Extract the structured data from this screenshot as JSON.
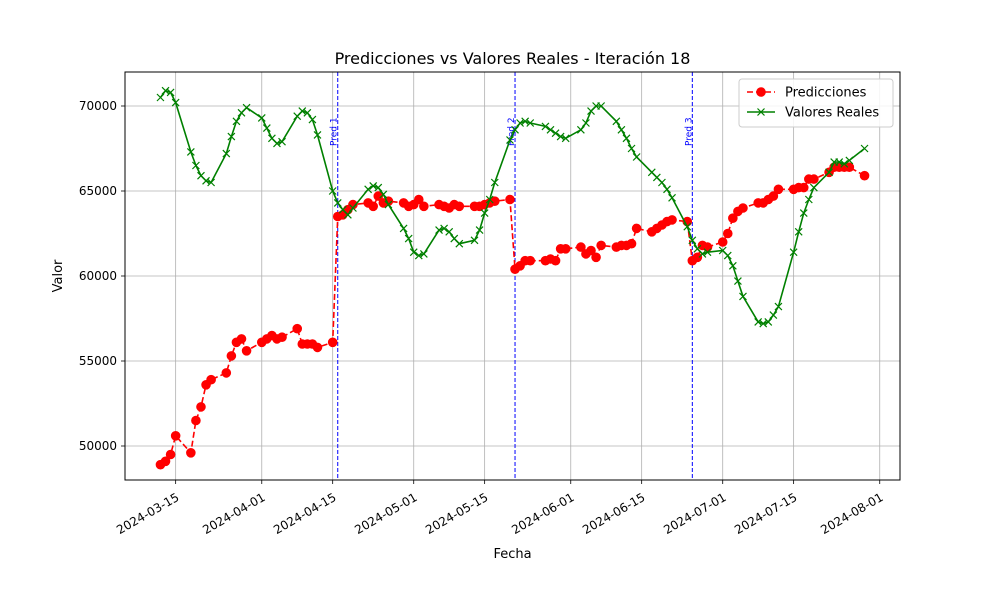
{
  "chart_data": {
    "type": "line",
    "title": "Predicciones vs Valores Reales - Iteración 18",
    "xlabel": "Fecha",
    "ylabel": "Valor",
    "x_axis": "date",
    "xlim": [
      "2024-03-05",
      "2024-08-05"
    ],
    "ylim": [
      48000,
      72000
    ],
    "grid": true,
    "legend": "top-right",
    "x_ticks": [
      "2024-03-15",
      "2024-04-01",
      "2024-04-15",
      "2024-05-01",
      "2024-05-15",
      "2024-06-01",
      "2024-06-15",
      "2024-07-01",
      "2024-07-15",
      "2024-08-01"
    ],
    "y_ticks": [
      50000,
      55000,
      60000,
      65000,
      70000
    ],
    "series": [
      {
        "name": "Predicciones",
        "color": "#ff0000",
        "line_style": "dashed",
        "marker": "circle",
        "points": [
          [
            "2024-03-12",
            48900
          ],
          [
            "2024-03-13",
            49100
          ],
          [
            "2024-03-14",
            49500
          ],
          [
            "2024-03-15",
            50600
          ],
          [
            "2024-03-18",
            49600
          ],
          [
            "2024-03-19",
            51500
          ],
          [
            "2024-03-20",
            52300
          ],
          [
            "2024-03-21",
            53600
          ],
          [
            "2024-03-22",
            53900
          ],
          [
            "2024-03-25",
            54300
          ],
          [
            "2024-03-26",
            55300
          ],
          [
            "2024-03-27",
            56100
          ],
          [
            "2024-03-28",
            56300
          ],
          [
            "2024-03-29",
            55600
          ],
          [
            "2024-04-01",
            56100
          ],
          [
            "2024-04-02",
            56300
          ],
          [
            "2024-04-03",
            56500
          ],
          [
            "2024-04-04",
            56300
          ],
          [
            "2024-04-05",
            56400
          ],
          [
            "2024-04-08",
            56900
          ],
          [
            "2024-04-09",
            56000
          ],
          [
            "2024-04-10",
            56000
          ],
          [
            "2024-04-11",
            56000
          ],
          [
            "2024-04-12",
            55800
          ],
          [
            "2024-04-15",
            56100
          ],
          [
            "2024-04-16",
            63500
          ],
          [
            "2024-04-17",
            63600
          ],
          [
            "2024-04-18",
            63900
          ],
          [
            "2024-04-19",
            64200
          ],
          [
            "2024-04-22",
            64300
          ],
          [
            "2024-04-23",
            64100
          ],
          [
            "2024-04-24",
            64700
          ],
          [
            "2024-04-25",
            64300
          ],
          [
            "2024-04-26",
            64400
          ],
          [
            "2024-04-29",
            64300
          ],
          [
            "2024-04-30",
            64100
          ],
          [
            "2024-05-01",
            64200
          ],
          [
            "2024-05-02",
            64500
          ],
          [
            "2024-05-03",
            64100
          ],
          [
            "2024-05-06",
            64200
          ],
          [
            "2024-05-07",
            64100
          ],
          [
            "2024-05-08",
            64000
          ],
          [
            "2024-05-09",
            64200
          ],
          [
            "2024-05-10",
            64100
          ],
          [
            "2024-05-13",
            64100
          ],
          [
            "2024-05-14",
            64100
          ],
          [
            "2024-05-15",
            64200
          ],
          [
            "2024-05-16",
            64300
          ],
          [
            "2024-05-17",
            64400
          ],
          [
            "2024-05-20",
            64500
          ],
          [
            "2024-05-21",
            60400
          ],
          [
            "2024-05-22",
            60600
          ],
          [
            "2024-05-23",
            60900
          ],
          [
            "2024-05-24",
            60900
          ],
          [
            "2024-05-27",
            60900
          ],
          [
            "2024-05-28",
            61000
          ],
          [
            "2024-05-29",
            60900
          ],
          [
            "2024-05-30",
            61600
          ],
          [
            "2024-05-31",
            61600
          ],
          [
            "2024-06-03",
            61700
          ],
          [
            "2024-06-04",
            61300
          ],
          [
            "2024-06-05",
            61500
          ],
          [
            "2024-06-06",
            61100
          ],
          [
            "2024-06-07",
            61800
          ],
          [
            "2024-06-10",
            61700
          ],
          [
            "2024-06-11",
            61800
          ],
          [
            "2024-06-12",
            61800
          ],
          [
            "2024-06-13",
            61900
          ],
          [
            "2024-06-14",
            62800
          ],
          [
            "2024-06-17",
            62600
          ],
          [
            "2024-06-18",
            62800
          ],
          [
            "2024-06-19",
            63000
          ],
          [
            "2024-06-20",
            63200
          ],
          [
            "2024-06-21",
            63300
          ],
          [
            "2024-06-24",
            63200
          ],
          [
            "2024-06-25",
            60900
          ],
          [
            "2024-06-26",
            61100
          ],
          [
            "2024-06-27",
            61800
          ],
          [
            "2024-06-28",
            61700
          ],
          [
            "2024-07-01",
            62000
          ],
          [
            "2024-07-02",
            62500
          ],
          [
            "2024-07-03",
            63400
          ],
          [
            "2024-07-04",
            63800
          ],
          [
            "2024-07-05",
            64000
          ],
          [
            "2024-07-08",
            64300
          ],
          [
            "2024-07-09",
            64300
          ],
          [
            "2024-07-10",
            64500
          ],
          [
            "2024-07-11",
            64700
          ],
          [
            "2024-07-12",
            65100
          ],
          [
            "2024-07-15",
            65100
          ],
          [
            "2024-07-16",
            65200
          ],
          [
            "2024-07-17",
            65200
          ],
          [
            "2024-07-18",
            65700
          ],
          [
            "2024-07-19",
            65700
          ],
          [
            "2024-07-22",
            66100
          ],
          [
            "2024-07-23",
            66400
          ],
          [
            "2024-07-24",
            66400
          ],
          [
            "2024-07-25",
            66400
          ],
          [
            "2024-07-26",
            66400
          ],
          [
            "2024-07-29",
            65900
          ]
        ]
      },
      {
        "name": "Valores Reales",
        "color": "#008000",
        "line_style": "solid",
        "marker": "x",
        "points": [
          [
            "2024-03-12",
            70500
          ],
          [
            "2024-03-13",
            70900
          ],
          [
            "2024-03-14",
            70800
          ],
          [
            "2024-03-15",
            70200
          ],
          [
            "2024-03-18",
            67300
          ],
          [
            "2024-03-19",
            66500
          ],
          [
            "2024-03-20",
            65900
          ],
          [
            "2024-03-21",
            65600
          ],
          [
            "2024-03-22",
            65500
          ],
          [
            "2024-03-25",
            67200
          ],
          [
            "2024-03-26",
            68200
          ],
          [
            "2024-03-27",
            69100
          ],
          [
            "2024-03-28",
            69600
          ],
          [
            "2024-03-29",
            69900
          ],
          [
            "2024-04-01",
            69300
          ],
          [
            "2024-04-02",
            68700
          ],
          [
            "2024-04-03",
            68100
          ],
          [
            "2024-04-04",
            67800
          ],
          [
            "2024-04-05",
            67900
          ],
          [
            "2024-04-08",
            69400
          ],
          [
            "2024-04-09",
            69700
          ],
          [
            "2024-04-10",
            69600
          ],
          [
            "2024-04-11",
            69200
          ],
          [
            "2024-04-12",
            68300
          ],
          [
            "2024-04-15",
            65000
          ],
          [
            "2024-04-16",
            64300
          ],
          [
            "2024-04-17",
            63900
          ],
          [
            "2024-04-18",
            63600
          ],
          [
            "2024-04-19",
            64000
          ],
          [
            "2024-04-22",
            65100
          ],
          [
            "2024-04-23",
            65300
          ],
          [
            "2024-04-24",
            65200
          ],
          [
            "2024-04-25",
            64800
          ],
          [
            "2024-04-26",
            64200
          ],
          [
            "2024-04-29",
            62800
          ],
          [
            "2024-04-30",
            62200
          ],
          [
            "2024-05-01",
            61400
          ],
          [
            "2024-05-02",
            61200
          ],
          [
            "2024-05-03",
            61300
          ],
          [
            "2024-05-06",
            62700
          ],
          [
            "2024-05-07",
            62800
          ],
          [
            "2024-05-08",
            62600
          ],
          [
            "2024-05-09",
            62200
          ],
          [
            "2024-05-10",
            61900
          ],
          [
            "2024-05-13",
            62100
          ],
          [
            "2024-05-14",
            62700
          ],
          [
            "2024-05-15",
            63700
          ],
          [
            "2024-05-16",
            64500
          ],
          [
            "2024-05-17",
            65500
          ],
          [
            "2024-05-20",
            68000
          ],
          [
            "2024-05-21",
            68600
          ],
          [
            "2024-05-22",
            69000
          ],
          [
            "2024-05-23",
            69100
          ],
          [
            "2024-05-24",
            69000
          ],
          [
            "2024-05-27",
            68800
          ],
          [
            "2024-05-28",
            68600
          ],
          [
            "2024-05-29",
            68400
          ],
          [
            "2024-05-30",
            68200
          ],
          [
            "2024-05-31",
            68100
          ],
          [
            "2024-06-03",
            68600
          ],
          [
            "2024-06-04",
            69000
          ],
          [
            "2024-06-05",
            69700
          ],
          [
            "2024-06-06",
            70000
          ],
          [
            "2024-06-07",
            70000
          ],
          [
            "2024-06-10",
            69100
          ],
          [
            "2024-06-11",
            68600
          ],
          [
            "2024-06-12",
            68100
          ],
          [
            "2024-06-13",
            67500
          ],
          [
            "2024-06-14",
            67000
          ],
          [
            "2024-06-17",
            66100
          ],
          [
            "2024-06-18",
            65800
          ],
          [
            "2024-06-19",
            65500
          ],
          [
            "2024-06-20",
            65100
          ],
          [
            "2024-06-21",
            64600
          ],
          [
            "2024-06-24",
            62900
          ],
          [
            "2024-06-25",
            62100
          ],
          [
            "2024-06-26",
            61600
          ],
          [
            "2024-06-27",
            61300
          ],
          [
            "2024-06-28",
            61400
          ],
          [
            "2024-07-01",
            61500
          ],
          [
            "2024-07-02",
            61200
          ],
          [
            "2024-07-03",
            60600
          ],
          [
            "2024-07-04",
            59700
          ],
          [
            "2024-07-05",
            58800
          ],
          [
            "2024-07-08",
            57300
          ],
          [
            "2024-07-09",
            57200
          ],
          [
            "2024-07-10",
            57300
          ],
          [
            "2024-07-11",
            57700
          ],
          [
            "2024-07-12",
            58200
          ],
          [
            "2024-07-15",
            61400
          ],
          [
            "2024-07-16",
            62600
          ],
          [
            "2024-07-17",
            63700
          ],
          [
            "2024-07-18",
            64500
          ],
          [
            "2024-07-19",
            65200
          ],
          [
            "2024-07-22",
            66100
          ],
          [
            "2024-07-23",
            66700
          ],
          [
            "2024-07-24",
            66700
          ],
          [
            "2024-07-25",
            66600
          ],
          [
            "2024-07-26",
            66800
          ],
          [
            "2024-07-29",
            67500
          ]
        ]
      }
    ],
    "annotations": [
      {
        "label": "Pred 1",
        "date": "2024-04-16",
        "color": "#0000ff"
      },
      {
        "label": "Pred 2",
        "date": "2024-05-21",
        "color": "#0000ff"
      },
      {
        "label": "Pred 3",
        "date": "2024-06-25",
        "color": "#0000ff"
      }
    ]
  }
}
